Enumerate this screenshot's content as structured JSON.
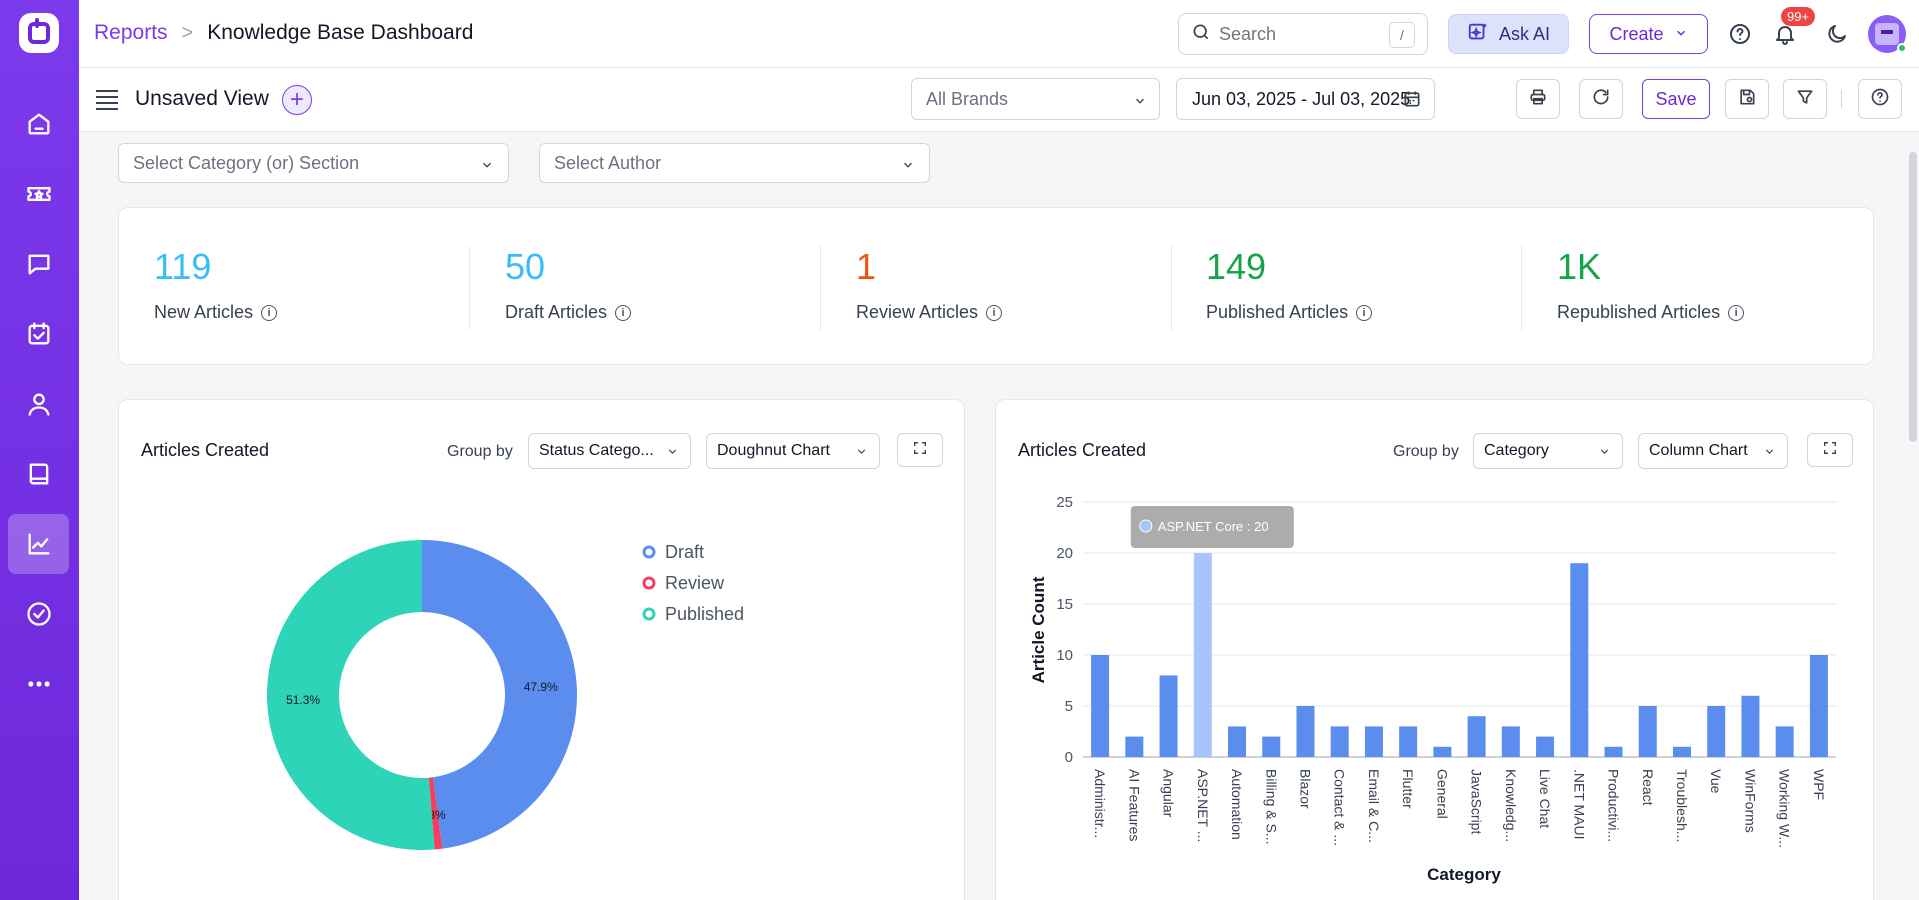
{
  "breadcrumb": {
    "parent": "Reports",
    "separator": ">",
    "current": "Knowledge Base Dashboard"
  },
  "search": {
    "placeholder": "Search",
    "shortcut": "/"
  },
  "header": {
    "ask_ai": "Ask AI",
    "create": "Create",
    "notification_count": "99+"
  },
  "view": {
    "title": "Unsaved View",
    "brand_placeholder": "All Brands",
    "date_range": "Jun 03, 2025 - Jul 03, 2025",
    "save": "Save"
  },
  "filters": {
    "category": "Select Category (or) Section",
    "author": "Select Author"
  },
  "stats": [
    {
      "value": "119",
      "label": "New Articles",
      "color": "#38bdf8"
    },
    {
      "value": "50",
      "label": "Draft Articles",
      "color": "#38bdf8"
    },
    {
      "value": "1",
      "label": "Review Articles",
      "color": "#ea580c"
    },
    {
      "value": "149",
      "label": "Published Articles",
      "color": "#16a34a"
    },
    {
      "value": "1K",
      "label": "Republished Articles",
      "color": "#16a34a"
    }
  ],
  "left_chart": {
    "title": "Articles Created",
    "group_label": "Group by",
    "group_value": "Status Catego...",
    "chart_type": "Doughnut Chart"
  },
  "right_chart": {
    "title": "Articles Created",
    "group_label": "Group by",
    "group_value": "Category",
    "chart_type": "Column Chart",
    "tooltip": "ASP.NET Core : 20"
  },
  "colors": {
    "accent": "#7c3aed",
    "bar": "#5b8def",
    "bar_highlight": "#a9c3fb",
    "draft": "#5b8def",
    "review": "#f43f5e",
    "published": "#2dd4b7"
  },
  "chart_data": [
    {
      "type": "pie",
      "labels": [
        "Draft",
        "Review",
        "Published"
      ],
      "values": [
        47.9,
        0.8,
        51.3
      ],
      "data_labels": [
        "47.9%",
        "0.8%",
        "51.3%"
      ],
      "legend": "right"
    },
    {
      "type": "bar",
      "categories": [
        "Administr...",
        "AI Features",
        "Angular",
        "ASP.NET ...",
        "Automation",
        "Billing & S...",
        "Blazor",
        "Contact & ...",
        "Email & C...",
        "Flutter",
        "General",
        "JavaScript",
        "Knowledg...",
        "Live Chat",
        ".NET MAUI",
        "Productivi...",
        "React",
        "Troublesh...",
        "Vue",
        "WinForms",
        "Working W...",
        "WPF"
      ],
      "values": [
        10,
        2,
        8,
        20,
        3,
        2,
        5,
        3,
        3,
        3,
        1,
        4,
        3,
        2,
        19,
        1,
        5,
        1,
        5,
        6,
        3,
        10
      ],
      "highlighted_index": 3,
      "xlabel": "Category",
      "ylabel": "Article Count",
      "ylim": [
        0,
        25
      ],
      "yticks": [
        0,
        5,
        10,
        15,
        20,
        25
      ],
      "grid": true
    }
  ]
}
